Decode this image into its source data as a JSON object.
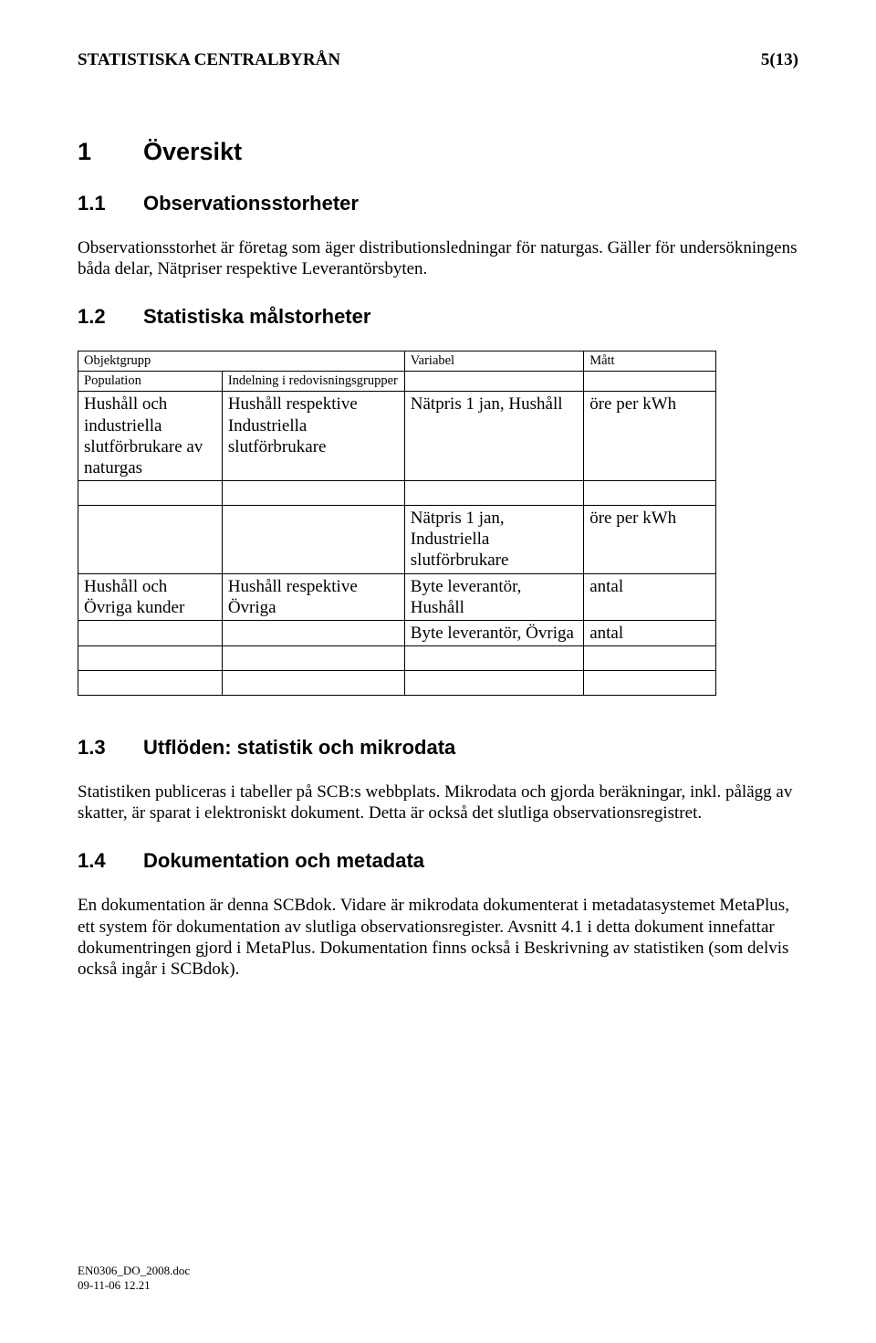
{
  "header": {
    "org": "STATISTISKA CENTRALBYRÅN",
    "page": "5(13)"
  },
  "s1": {
    "num": "1",
    "title": "Översikt"
  },
  "s11": {
    "num": "1.1",
    "title": "Observationsstorheter",
    "para": "Observationsstorhet är företag som äger distributionsledningar för naturgas. Gäller för undersökningens båda delar, Nätpriser respektive Leverantörsbyten."
  },
  "s12": {
    "num": "1.2",
    "title": "Statistiska målstorheter"
  },
  "table": {
    "head": {
      "c1": "Objektgrupp",
      "c3": "Variabel",
      "c4": "Mått"
    },
    "sub": {
      "c1": "Population",
      "c2": "Indelning i redovisningsgrupper"
    },
    "r1": {
      "c1": "Hushåll och industriella slutförbrukare av naturgas",
      "c2": "Hushåll respektive Industriella slutförbrukare",
      "c3": "Nätpris 1 jan, Hushåll",
      "c4": "öre per kWh"
    },
    "r2": {
      "c3": "Nätpris 1 jan, Industriella slutförbrukare",
      "c4": "öre per kWh"
    },
    "r3": {
      "c1": "Hushåll och Övriga kunder",
      "c2": "Hushåll respektive Övriga",
      "c3": "Byte leverantör, Hushåll",
      "c4": "antal"
    },
    "r4": {
      "c3": "Byte leverantör, Övriga",
      "c4": "antal"
    }
  },
  "s13": {
    "num": "1.3",
    "title": "Utflöden: statistik och mikrodata",
    "para": "Statistiken publiceras i tabeller på SCB:s webbplats. Mikrodata och gjorda beräkningar, inkl. pålägg av skatter, är sparat i elektroniskt dokument. Detta är också det slutliga observationsregistret."
  },
  "s14": {
    "num": "1.4",
    "title": "Dokumentation och metadata",
    "para": "En dokumentation är denna SCBdok. Vidare är mikrodata dokumenterat i metadatasystemet MetaPlus, ett system för dokumentation av slutliga observationsregister. Avsnitt 4.1 i detta dokument innefattar dokumentringen gjord i MetaPlus. Dokumentation finns också i Beskrivning av statistiken (som delvis också ingår i SCBdok)."
  },
  "footer": {
    "file": "EN0306_DO_2008.doc",
    "date": "09-11-06 12.21"
  }
}
